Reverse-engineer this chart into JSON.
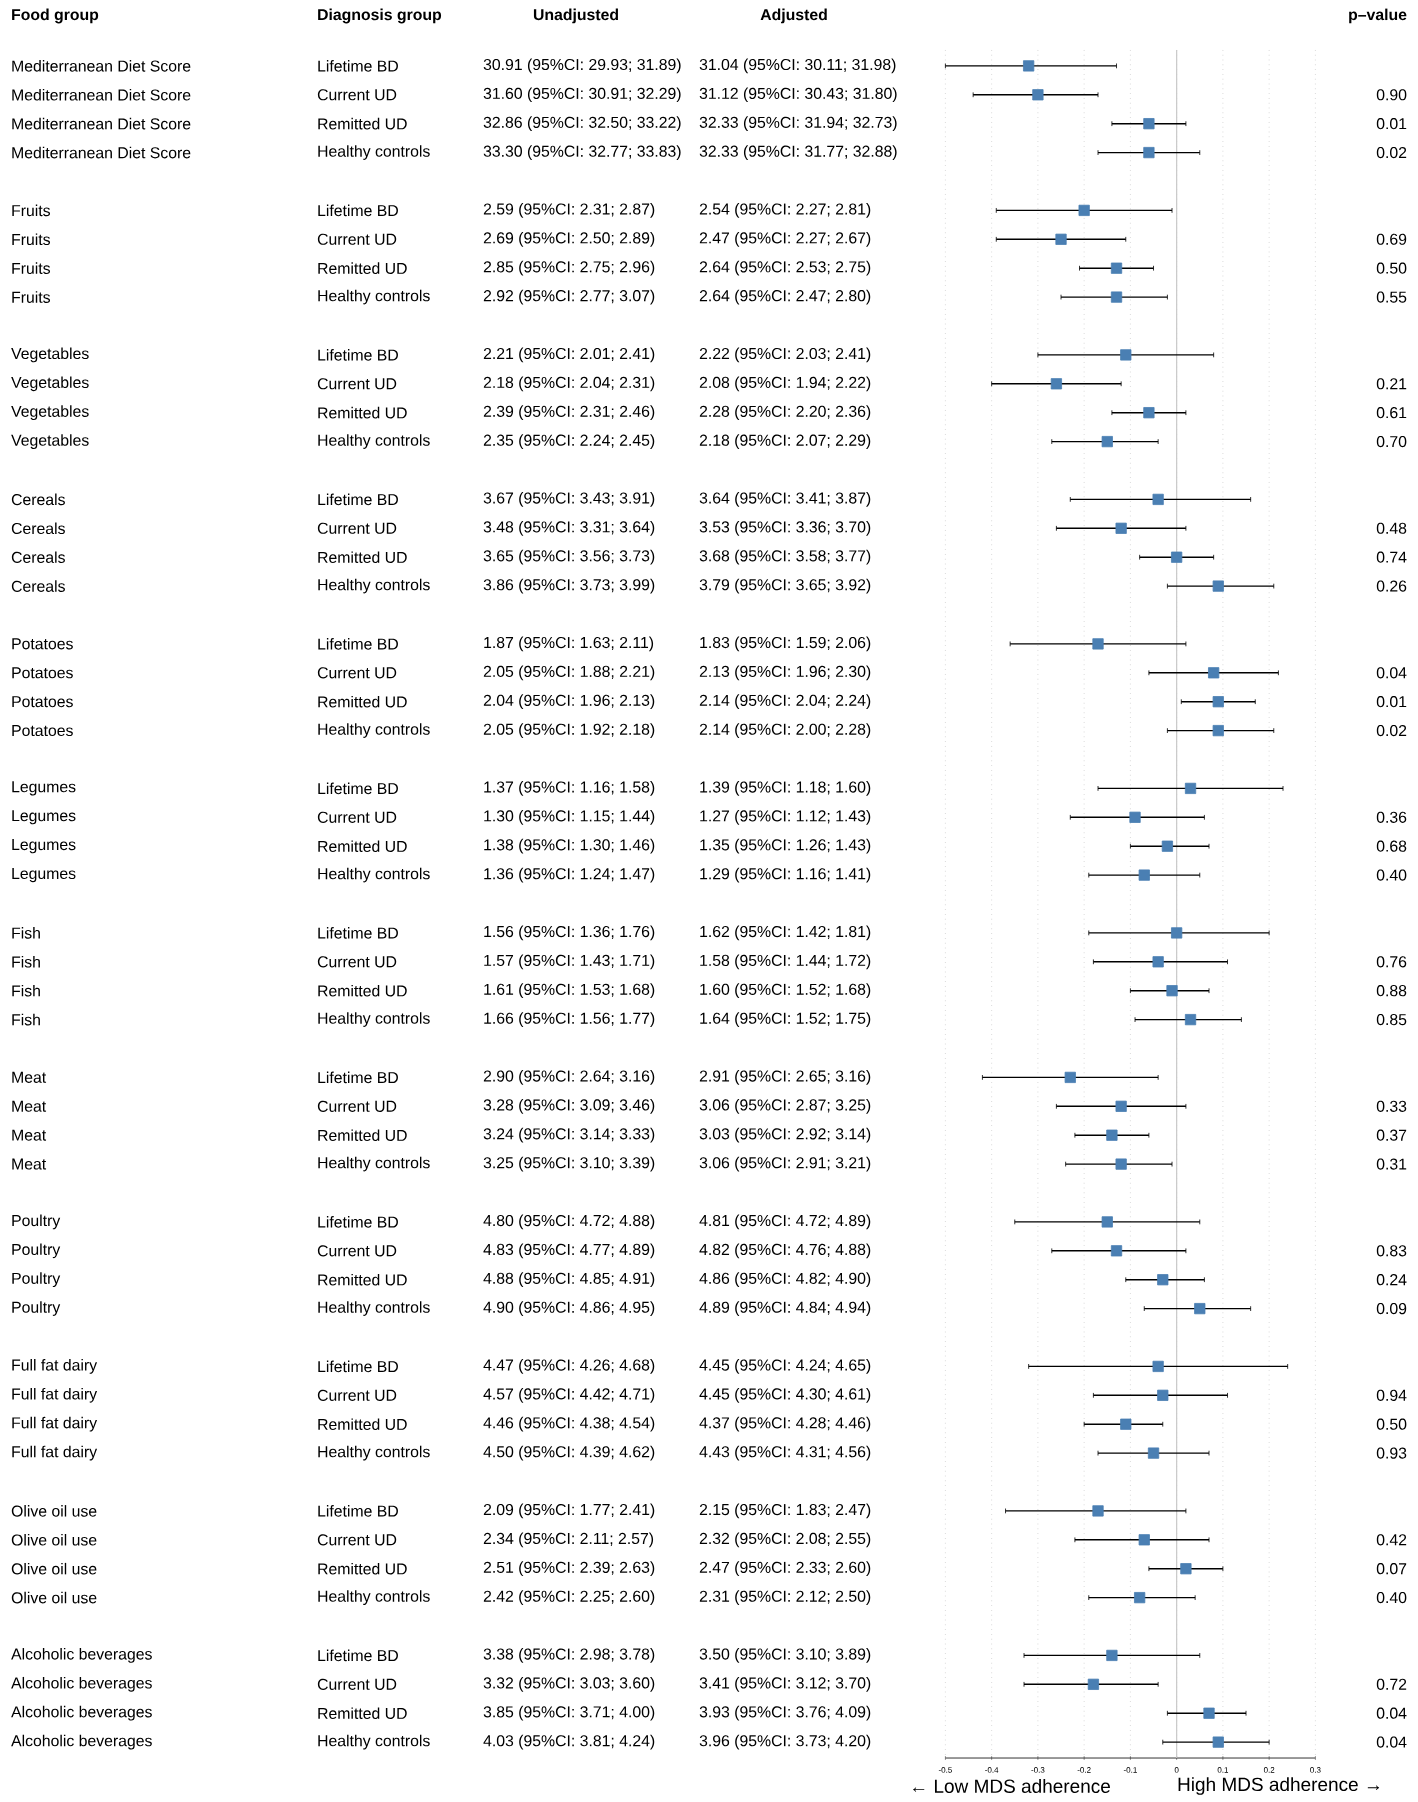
{
  "chart_data": {
    "type": "scatter",
    "orientation": "horizontal",
    "categories": [
      null,
      null,
      null,
      null,
      null,
      null,
      null,
      null,
      null,
      null,
      null,
      null,
      null,
      null,
      null,
      null,
      null,
      null,
      null,
      null,
      null,
      null,
      null,
      null,
      null,
      null,
      null,
      null,
      null,
      null,
      null,
      null,
      null,
      null,
      null,
      null,
      null,
      null,
      null,
      null,
      null,
      null,
      null,
      null,
      null,
      null,
      null,
      null,
      null,
      null,
      null,
      null,
      null,
      null,
      null,
      null,
      null,
      null,
      null
    ],
    "tick_labels": "x",
    "values": [
      -0.32,
      -0.3,
      -0.06,
      -0.06,
      null,
      -0.2,
      -0.25,
      -0.13,
      -0.13,
      null,
      -0.11,
      -0.26,
      -0.06,
      -0.15,
      null,
      -0.04,
      -0.12,
      0.0,
      0.09,
      null,
      -0.17,
      0.08,
      0.09,
      0.09,
      null,
      0.03,
      -0.09,
      -0.02,
      -0.07,
      null,
      0.0,
      -0.04,
      -0.01,
      0.03,
      null,
      -0.23,
      -0.12,
      -0.14,
      -0.12,
      null,
      -0.15,
      -0.13,
      -0.03,
      0.05,
      null,
      -0.04,
      -0.03,
      -0.11,
      -0.05,
      null,
      -0.17,
      -0.07,
      0.02,
      -0.08,
      null,
      -0.14,
      -0.18,
      0.07,
      0.09
    ],
    "errors": [
      [
        -0.5,
        -0.13
      ],
      [
        -0.44,
        -0.17
      ],
      [
        -0.14,
        0.02
      ],
      [
        -0.17,
        0.05
      ],
      null,
      [
        -0.39,
        -0.01
      ],
      [
        -0.39,
        -0.11
      ],
      [
        -0.21,
        -0.05
      ],
      [
        -0.25,
        -0.02
      ],
      null,
      [
        -0.3,
        0.08
      ],
      [
        -0.4,
        -0.12
      ],
      [
        -0.14,
        0.02
      ],
      [
        -0.27,
        -0.04
      ],
      null,
      [
        -0.23,
        0.16
      ],
      [
        -0.26,
        0.02
      ],
      [
        -0.08,
        0.08
      ],
      [
        -0.02,
        0.21
      ],
      null,
      [
        -0.36,
        0.02
      ],
      [
        -0.06,
        0.22
      ],
      [
        0.01,
        0.17
      ],
      [
        -0.02,
        0.21
      ],
      null,
      [
        -0.17,
        0.23
      ],
      [
        -0.23,
        0.06
      ],
      [
        -0.1,
        0.07
      ],
      [
        -0.19,
        0.05
      ],
      null,
      [
        -0.19,
        0.2
      ],
      [
        -0.18,
        0.11
      ],
      [
        -0.1,
        0.07
      ],
      [
        -0.09,
        0.14
      ],
      null,
      [
        -0.42,
        -0.04
      ],
      [
        -0.26,
        0.02
      ],
      [
        -0.22,
        -0.06
      ],
      [
        -0.24,
        -0.01
      ],
      null,
      [
        -0.35,
        0.05
      ],
      [
        -0.27,
        0.02
      ],
      [
        -0.11,
        0.06
      ],
      [
        -0.07,
        0.16
      ],
      null,
      [
        -0.32,
        0.24
      ],
      [
        -0.18,
        0.11
      ],
      [
        -0.2,
        -0.03
      ],
      [
        -0.17,
        0.07
      ],
      null,
      [
        -0.37,
        0.02
      ],
      [
        -0.22,
        0.07
      ],
      [
        -0.06,
        0.1
      ],
      [
        -0.19,
        0.04
      ],
      null,
      [
        -0.33,
        0.05
      ],
      [
        -0.33,
        -0.04
      ],
      [
        -0.02,
        0.15
      ],
      [
        -0.03,
        0.2
      ]
    ],
    "color": "#4a7fb3",
    "marker": "square",
    "grid": "x",
    "xlim": [
      -0.5,
      0.3
    ],
    "xticks": [
      -0.5,
      -0.4,
      -0.3,
      -0.2,
      -0.1,
      0,
      0.1,
      0.2,
      0.3
    ],
    "ref_lines": [
      {
        "axis": "x",
        "value": 0,
        "color": "#c8c8c8"
      }
    ],
    "annotations": [
      "Food group",
      "Diagnosis group",
      "Unadjusted",
      "Adjusted",
      "p–value",
      "← Low MDS adherence",
      "High MDS adherence →",
      "Mediterranean Diet Score",
      "Mediterranean Diet Score",
      "Mediterranean Diet Score",
      "Mediterranean Diet Score",
      "Fruits",
      "Fruits",
      "Fruits",
      "Fruits",
      "Vegetables",
      "Vegetables",
      "Vegetables",
      "Vegetables",
      "Cereals",
      "Cereals",
      "Cereals",
      "Cereals",
      "Potatoes",
      "Potatoes",
      "Potatoes",
      "Potatoes",
      "Legumes",
      "Legumes",
      "Legumes",
      "Legumes",
      "Fish",
      "Fish",
      "Fish",
      "Fish",
      "Meat",
      "Meat",
      "Meat",
      "Meat",
      "Poultry",
      "Poultry",
      "Poultry",
      "Poultry",
      "Full fat dairy",
      "Full fat dairy",
      "Full fat dairy",
      "Full fat dairy",
      "Olive oil use",
      "Olive oil use",
      "Olive oil use",
      "Olive oil use",
      "Alcoholic beverages",
      "Alcoholic beverages",
      "Alcoholic beverages",
      "Alcoholic beverages",
      "Lifetime BD",
      "Current UD",
      "Remitted UD",
      "Healthy controls",
      "Lifetime BD",
      "Current UD",
      "Remitted UD",
      "Healthy controls",
      "Lifetime BD",
      "Current UD",
      "Remitted UD",
      "Healthy controls",
      "Lifetime BD",
      "Current UD",
      "Remitted UD",
      "Healthy controls",
      "Lifetime BD",
      "Current UD",
      "Remitted UD",
      "Healthy controls",
      "Lifetime BD",
      "Current UD",
      "Remitted UD",
      "Healthy controls",
      "Lifetime BD",
      "Current UD",
      "Remitted UD",
      "Healthy controls",
      "Lifetime BD",
      "Current UD",
      "Remitted UD",
      "Healthy controls",
      "Lifetime BD",
      "Current UD",
      "Remitted UD",
      "Healthy controls",
      "Lifetime BD",
      "Current UD",
      "Remitted UD",
      "Healthy controls",
      "Lifetime BD",
      "Current UD",
      "Remitted UD",
      "Healthy controls",
      "Lifetime BD",
      "Current UD",
      "Remitted UD",
      "Healthy controls",
      "30.91 (95%CI: 29.93; 31.89)",
      "31.60 (95%CI: 30.91; 32.29)",
      "32.86 (95%CI: 32.50; 33.22)",
      "33.30 (95%CI: 32.77; 33.83)",
      "2.59 (95%CI: 2.31; 2.87)",
      "2.69 (95%CI: 2.50; 2.89)",
      "2.85 (95%CI: 2.75; 2.96)",
      "2.92 (95%CI: 2.77; 3.07)",
      "2.21 (95%CI: 2.01; 2.41)",
      "2.18 (95%CI: 2.04; 2.31)",
      "2.39 (95%CI: 2.31; 2.46)",
      "2.35 (95%CI: 2.24; 2.45)",
      "3.67 (95%CI: 3.43; 3.91)",
      "3.48 (95%CI: 3.31; 3.64)",
      "3.65 (95%CI: 3.56; 3.73)",
      "3.86 (95%CI: 3.73; 3.99)",
      "1.87 (95%CI: 1.63; 2.11)",
      "2.05 (95%CI: 1.88; 2.21)",
      "2.04 (95%CI: 1.96; 2.13)",
      "2.05 (95%CI: 1.92; 2.18)",
      "1.37 (95%CI: 1.16; 1.58)",
      "1.30 (95%CI: 1.15; 1.44)",
      "1.38 (95%CI: 1.30; 1.46)",
      "1.36 (95%CI: 1.24; 1.47)",
      "1.56 (95%CI: 1.36; 1.76)",
      "1.57 (95%CI: 1.43; 1.71)",
      "1.61 (95%CI: 1.53; 1.68)",
      "1.66 (95%CI: 1.56; 1.77)",
      "2.90 (95%CI: 2.64; 3.16)",
      "3.28 (95%CI: 3.09; 3.46)",
      "3.24 (95%CI: 3.14; 3.33)",
      "3.25 (95%CI: 3.10; 3.39)",
      "4.80 (95%CI: 4.72; 4.88)",
      "4.83 (95%CI: 4.77; 4.89)",
      "4.88 (95%CI: 4.85; 4.91)",
      "4.90 (95%CI: 4.86; 4.95)",
      "4.47 (95%CI: 4.26; 4.68)",
      "4.57 (95%CI: 4.42; 4.71)",
      "4.46 (95%CI: 4.38; 4.54)",
      "4.50 (95%CI: 4.39; 4.62)",
      "2.09 (95%CI: 1.77; 2.41)",
      "2.34 (95%CI: 2.11; 2.57)",
      "2.51 (95%CI: 2.39; 2.63)",
      "2.42 (95%CI: 2.25; 2.60)",
      "3.38 (95%CI: 2.98; 3.78)",
      "3.32 (95%CI: 3.03; 3.60)",
      "3.85 (95%CI: 3.71; 4.00)",
      "4.03 (95%CI: 3.81; 4.24)",
      "31.04 (95%CI: 30.11; 31.98)",
      "31.12 (95%CI: 30.43; 31.80)",
      "32.33 (95%CI: 31.94; 32.73)",
      "32.33 (95%CI: 31.77; 32.88)",
      "2.54 (95%CI: 2.27; 2.81)",
      "2.47 (95%CI: 2.27; 2.67)",
      "2.64 (95%CI: 2.53; 2.75)",
      "2.64 (95%CI: 2.47; 2.80)",
      "2.22 (95%CI: 2.03; 2.41)",
      "2.08 (95%CI: 1.94; 2.22)",
      "2.28 (95%CI: 2.20; 2.36)",
      "2.18 (95%CI: 2.07; 2.29)",
      "3.64 (95%CI: 3.41; 3.87)",
      "3.53 (95%CI: 3.36; 3.70)",
      "3.68 (95%CI: 3.58; 3.77)",
      "3.79 (95%CI: 3.65; 3.92)",
      "1.83 (95%CI: 1.59; 2.06)",
      "2.13 (95%CI: 1.96; 2.30)",
      "2.14 (95%CI: 2.04; 2.24)",
      "2.14 (95%CI: 2.00; 2.28)",
      "1.39 (95%CI: 1.18; 1.60)",
      "1.27 (95%CI: 1.12; 1.43)",
      "1.35 (95%CI: 1.26; 1.43)",
      "1.29 (95%CI: 1.16; 1.41)",
      "1.62 (95%CI: 1.42; 1.81)",
      "1.58 (95%CI: 1.44; 1.72)",
      "1.60 (95%CI: 1.52; 1.68)",
      "1.64 (95%CI: 1.52; 1.75)",
      "2.91 (95%CI: 2.65; 3.16)",
      "3.06 (95%CI: 2.87; 3.25)",
      "3.03 (95%CI: 2.92; 3.14)",
      "3.06 (95%CI: 2.91; 3.21)",
      "4.81 (95%CI: 4.72; 4.89)",
      "4.82 (95%CI: 4.76; 4.88)",
      "4.86 (95%CI: 4.82; 4.90)",
      "4.89 (95%CI: 4.84; 4.94)",
      "4.45 (95%CI: 4.24; 4.65)",
      "4.45 (95%CI: 4.30; 4.61)",
      "4.37 (95%CI: 4.28; 4.46)",
      "4.43 (95%CI: 4.31; 4.56)",
      "2.15 (95%CI: 1.83; 2.47)",
      "2.32 (95%CI: 2.08; 2.55)",
      "2.47 (95%CI: 2.33; 2.60)",
      "2.31 (95%CI: 2.12; 2.50)",
      "3.50 (95%CI: 3.10; 3.89)",
      "3.41 (95%CI: 3.12; 3.70)",
      "3.93 (95%CI: 3.76; 4.09)",
      "3.96 (95%CI: 3.73; 4.20)",
      "0.90",
      "0.01",
      "0.02",
      "0.69",
      "0.50",
      "0.55",
      "0.21",
      "0.61",
      "0.70",
      "0.48",
      "0.74",
      "0.26",
      "0.04",
      "0.01",
      "0.02",
      "0.36",
      "0.68",
      "0.40",
      "0.76",
      "0.88",
      "0.85",
      "0.33",
      "0.37",
      "0.31",
      "0.83",
      "0.24",
      "0.09",
      "0.94",
      "0.50",
      "0.93",
      "0.42",
      "0.07",
      "0.40",
      "0.72",
      "0.04",
      "0.04"
    ]
  }
}
